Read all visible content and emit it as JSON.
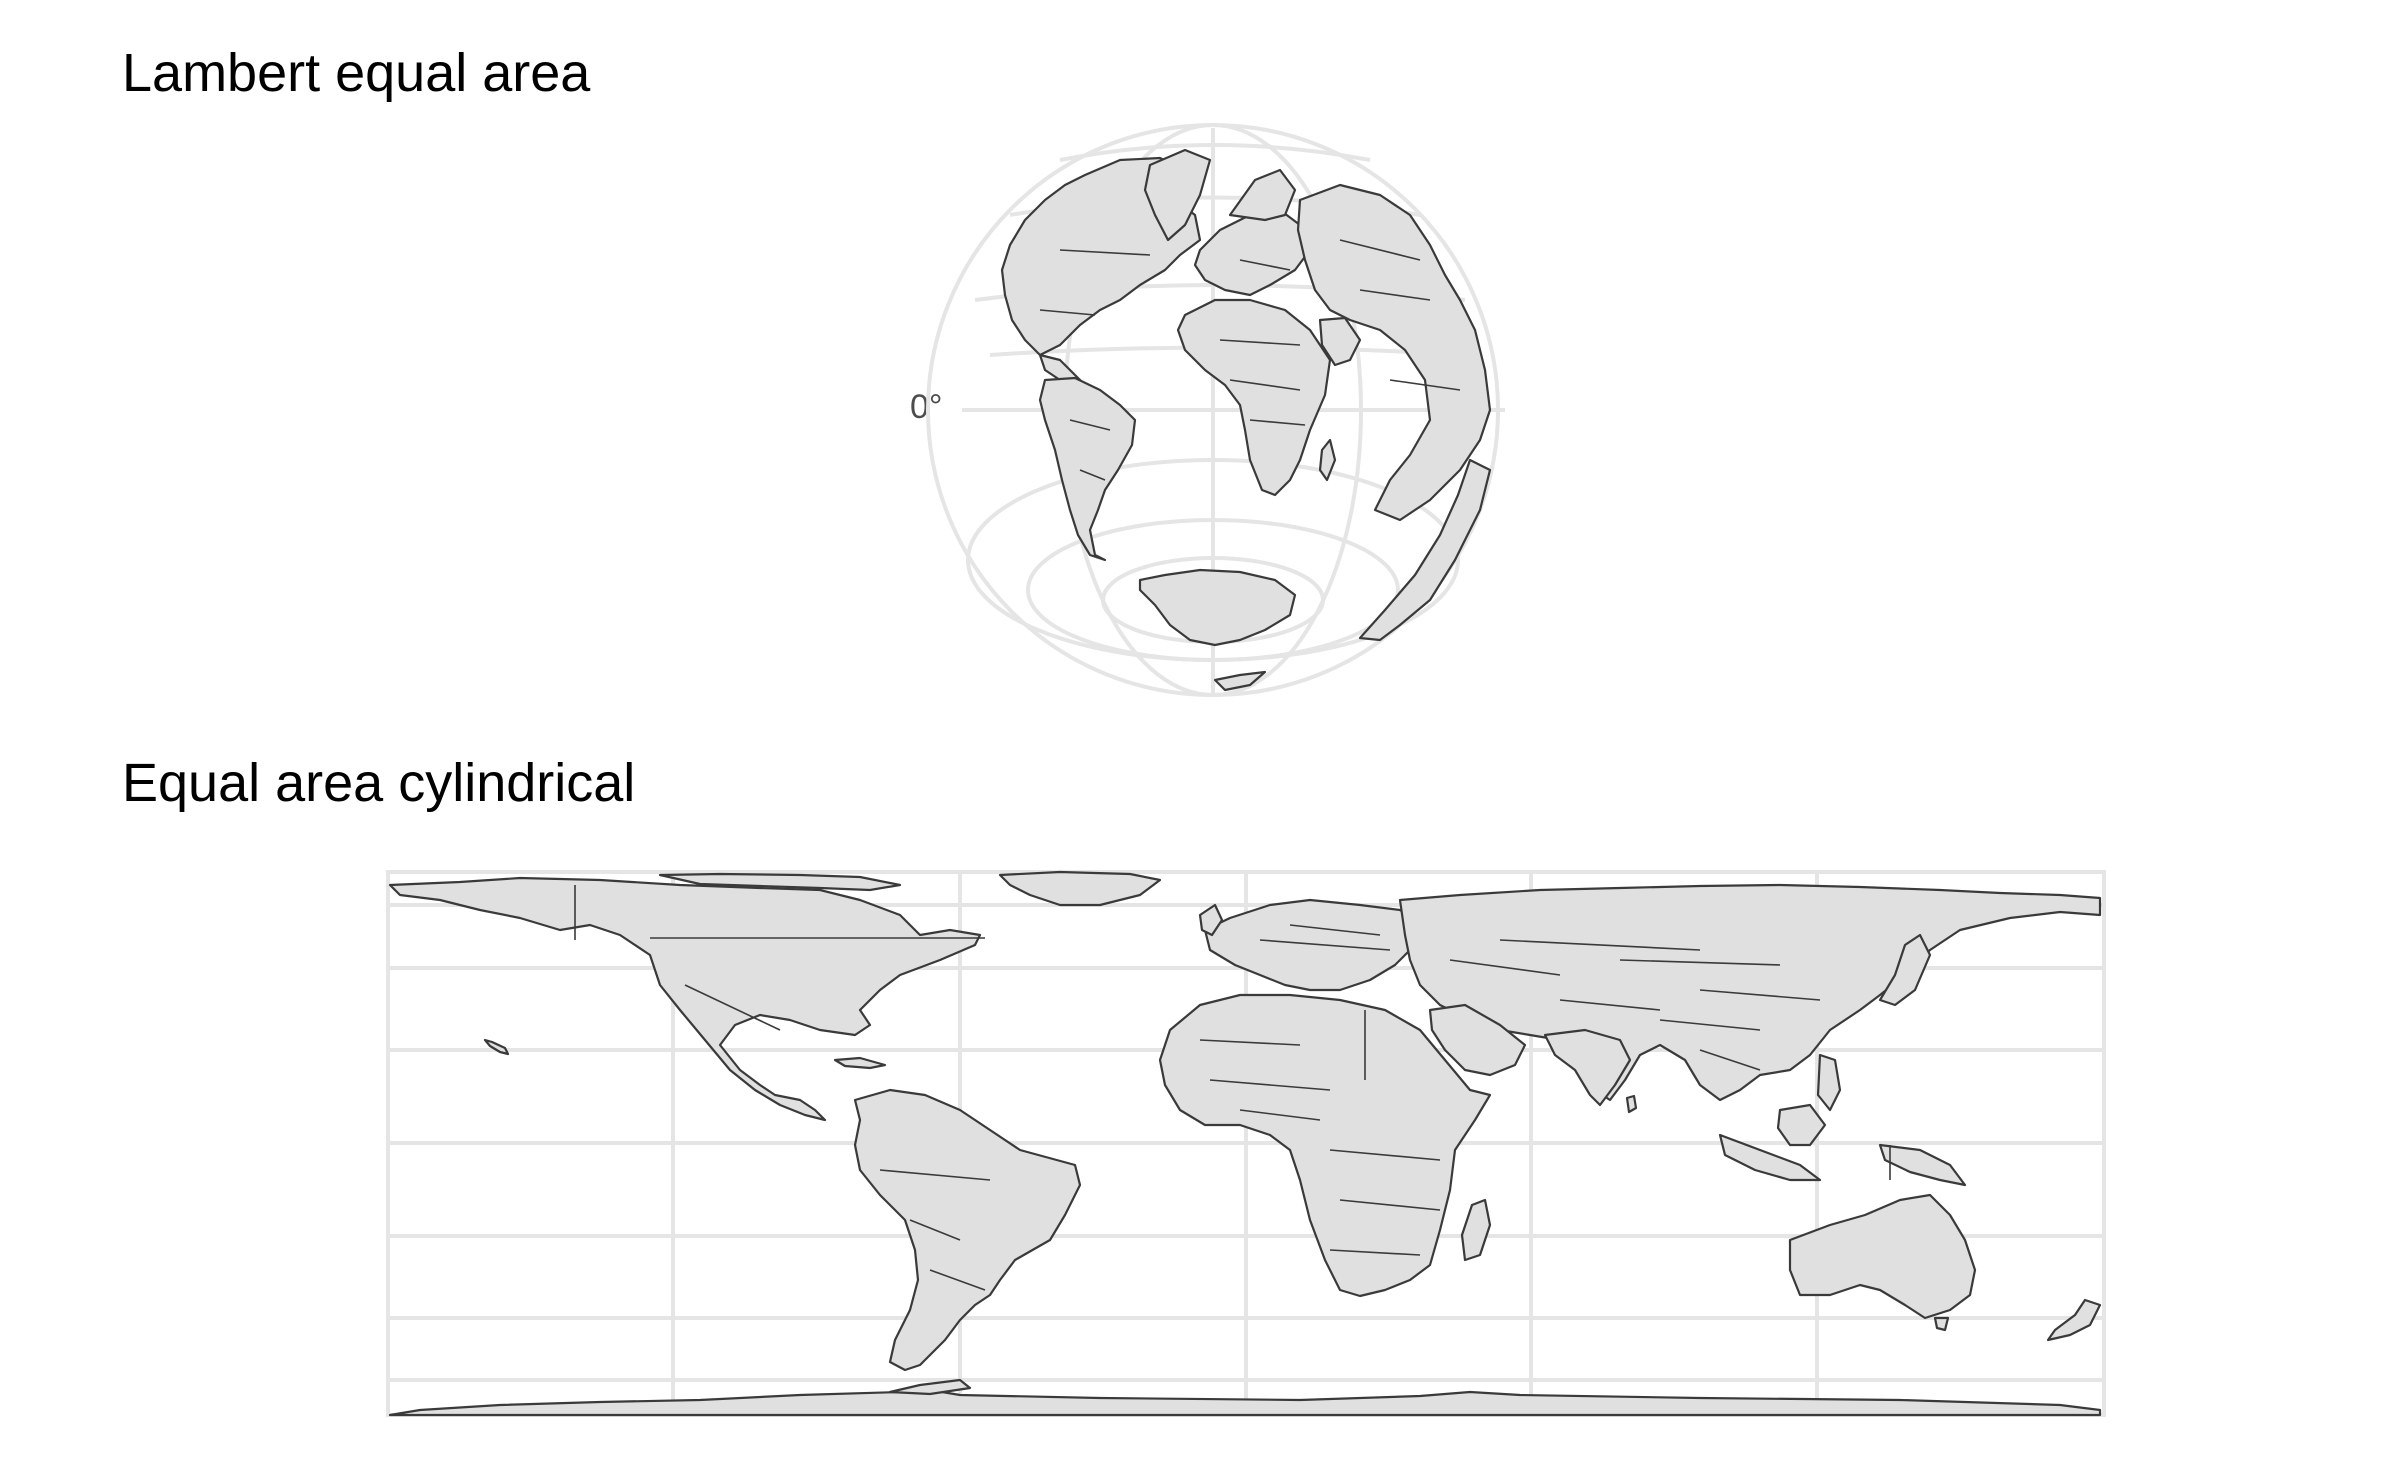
{
  "maps": [
    {
      "title": "Lambert equal area",
      "projection": "lambert-azimuthal-equal-area",
      "graticule_labels": [
        "0°"
      ]
    },
    {
      "title": "Equal area cylindrical",
      "projection": "equal-area-cylindrical",
      "graticule_labels": []
    }
  ],
  "colors": {
    "land": "#e0e0e0",
    "coastline": "#3a3a3a",
    "graticule": "#e5e5e5",
    "background": "#ffffff"
  }
}
